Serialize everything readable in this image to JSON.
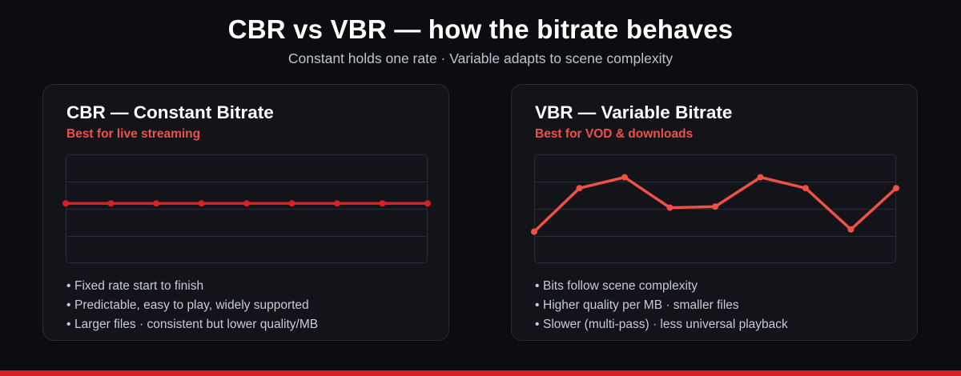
{
  "header": {
    "title": "CBR vs VBR — how the bitrate behaves",
    "subtitle": "Constant holds one rate · Variable adapts to scene complexity"
  },
  "cards": [
    {
      "title": "CBR — Constant Bitrate",
      "tag": "Best for live streaming",
      "bullets": [
        "Fixed rate start to finish",
        "Predictable, easy to play, widely supported",
        "Larger files · consistent but lower quality/MB"
      ]
    },
    {
      "title": "VBR — Variable Bitrate",
      "tag": "Best for VOD & downloads",
      "bullets": [
        "Bits follow scene complexity",
        "Higher quality per MB · smaller files",
        "Slower (multi-pass) · less universal playback"
      ]
    }
  ],
  "colors": {
    "accent": "#ef5147",
    "cbr_line": "#d7202a",
    "bottom_bar": "#d7202a"
  },
  "chart_data": [
    {
      "type": "line",
      "x": [
        0,
        1,
        2,
        3,
        4,
        5,
        6,
        7,
        8
      ],
      "series": [
        {
          "values": [
            0.55,
            0.55,
            0.55,
            0.55,
            0.55,
            0.55,
            0.55,
            0.55,
            0.55
          ]
        }
      ],
      "ylim": [
        0,
        1
      ],
      "grid": true,
      "title": "",
      "xlabel": "",
      "ylabel": ""
    },
    {
      "type": "line",
      "x": [
        0,
        1,
        2,
        3,
        4,
        5,
        6,
        7,
        8
      ],
      "series": [
        {
          "values": [
            0.29,
            0.69,
            0.79,
            0.51,
            0.52,
            0.79,
            0.69,
            0.31,
            0.69
          ]
        }
      ],
      "ylim": [
        0,
        1
      ],
      "grid": true,
      "title": "",
      "xlabel": "",
      "ylabel": ""
    }
  ]
}
